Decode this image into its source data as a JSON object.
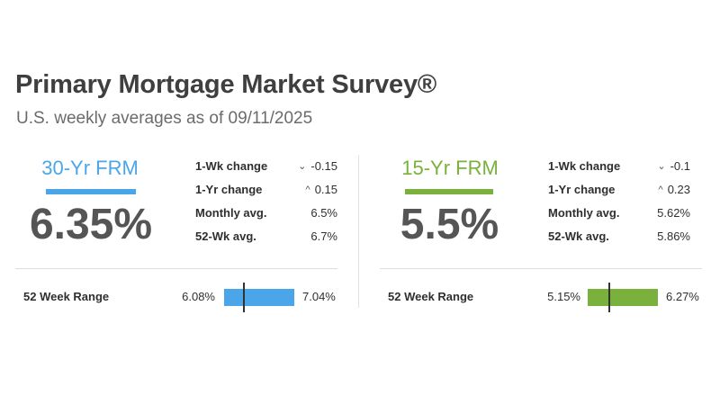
{
  "header": {
    "title": "Primary Mortgage Market Survey®",
    "subtitle": "U.S. weekly averages as of 09/11/2025"
  },
  "colors": {
    "frm30": "#4aa6e8",
    "frm15": "#7ab03c"
  },
  "frm30": {
    "label": "30-Yr FRM",
    "rate": "6.35%",
    "stats": [
      {
        "label": "1-Wk change",
        "direction": "down",
        "icon": "chevron-down-icon",
        "glyph": "⌄",
        "value": "-0.15"
      },
      {
        "label": "1-Yr change",
        "direction": "up",
        "icon": "chevron-up-icon",
        "glyph": "^",
        "value": "0.15"
      },
      {
        "label": "Monthly avg.",
        "value": "6.5%"
      },
      {
        "label": "52-Wk avg.",
        "value": "6.7%"
      }
    ],
    "range": {
      "label": "52 Week Range",
      "min": "6.08%",
      "max": "7.04%",
      "min_value": 6.08,
      "max_value": 7.04,
      "current_value": 6.35
    }
  },
  "frm15": {
    "label": "15-Yr FRM",
    "rate": "5.5%",
    "stats": [
      {
        "label": "1-Wk change",
        "direction": "down",
        "icon": "chevron-down-icon",
        "glyph": "⌄",
        "value": "-0.1"
      },
      {
        "label": "1-Yr change",
        "direction": "up",
        "icon": "chevron-up-icon",
        "glyph": "^",
        "value": "0.23"
      },
      {
        "label": "Monthly avg.",
        "value": "5.62%"
      },
      {
        "label": "52-Wk avg.",
        "value": "5.86%"
      }
    ],
    "range": {
      "label": "52 Week Range",
      "min": "5.15%",
      "max": "6.27%",
      "min_value": 5.15,
      "max_value": 6.27,
      "current_value": 5.5
    }
  }
}
